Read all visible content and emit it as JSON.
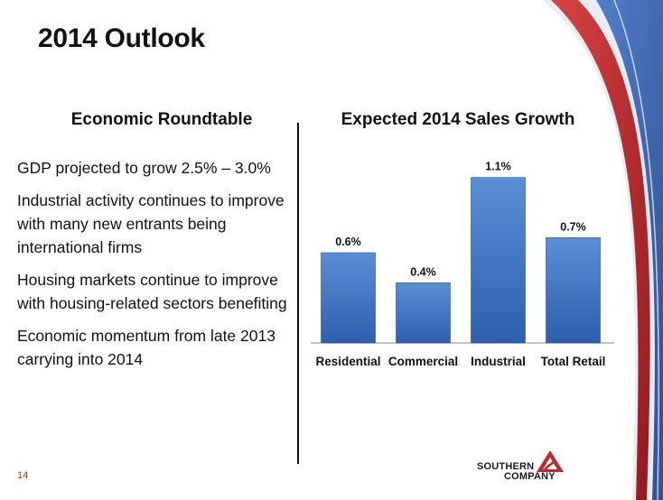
{
  "slide": {
    "title": "2014 Outlook",
    "page_number": "14"
  },
  "left_panel": {
    "heading": "Economic Roundtable",
    "bullets": [
      "GDP projected to grow 2.5% – 3.0%",
      "Industrial activity continues to improve with many new entrants being international firms",
      "Housing markets continue to improve with housing-related sectors benefiting",
      "Economic momentum from late 2013 carrying into 2014"
    ]
  },
  "logo": {
    "line1": "SOUTHERN",
    "line2": "COMPANY",
    "icon": "triangle-logo-icon",
    "color": "#c0282d"
  },
  "colors": {
    "bar_top": "#5a8fd6",
    "bar_bottom": "#2c5fae",
    "swoosh_red": "#b3141b",
    "swoosh_blue": "#2f5fb0"
  },
  "chart_data": {
    "type": "bar",
    "title": "Expected 2014 Sales Growth",
    "categories": [
      "Residential",
      "Commercial",
      "Industrial",
      "Total Retail"
    ],
    "values": [
      0.6,
      0.4,
      1.1,
      0.7
    ],
    "data_labels": [
      "0.6%",
      "0.4%",
      "1.1%",
      "0.7%"
    ],
    "unit": "%",
    "ylim": [
      0,
      1.2
    ],
    "grid": false,
    "legend": "none"
  }
}
